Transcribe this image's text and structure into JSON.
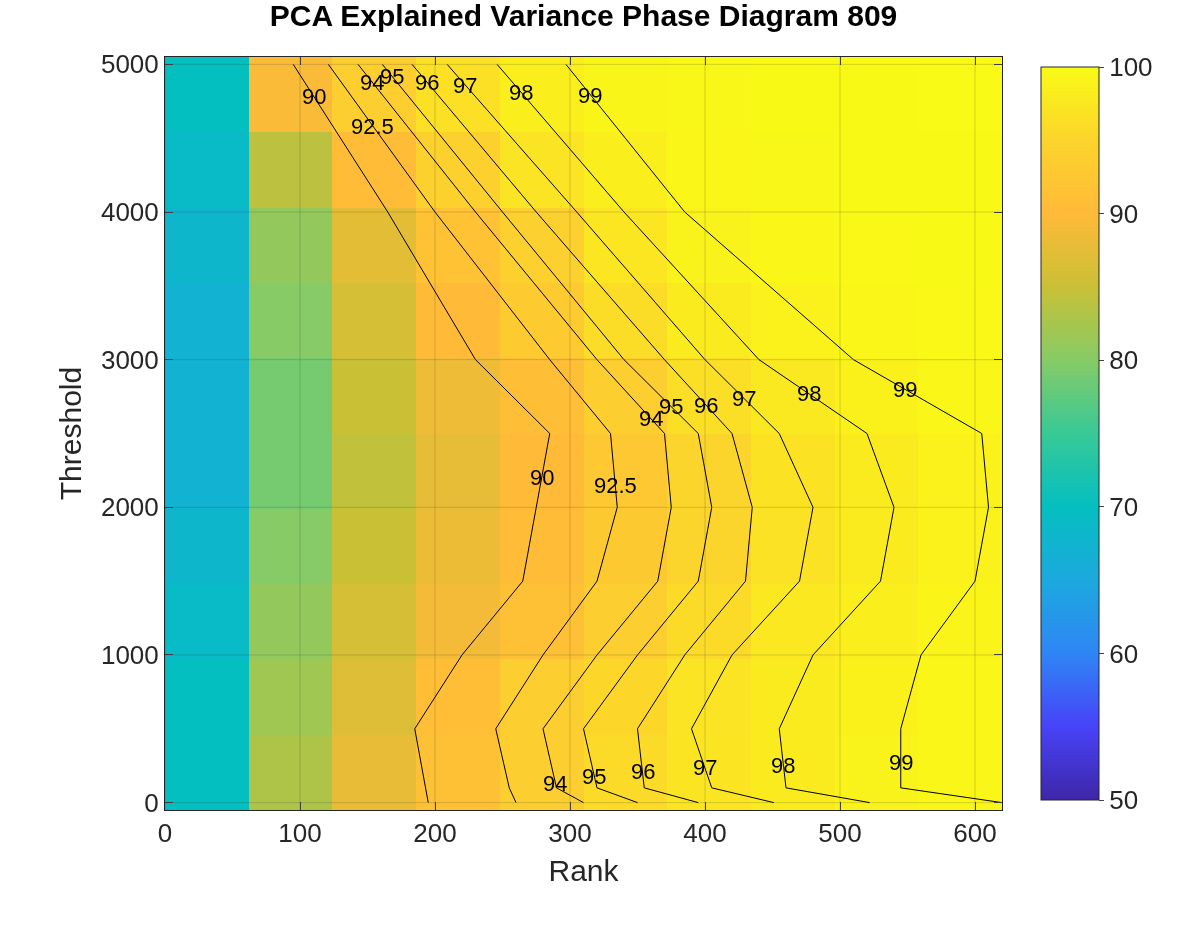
{
  "chart_data": {
    "type": "heatmap",
    "title": "PCA Explained Variance Phase Diagram 809",
    "xlabel": "Rank",
    "ylabel": "Threshold",
    "x": [
      31,
      93,
      155,
      217,
      279,
      341,
      403,
      465,
      527,
      589
    ],
    "cells": [
      [
        70,
        89.5,
        93.8,
        96.6,
        98.3,
        99.2,
        99.5,
        99.7,
        99.8,
        99.9
      ],
      [
        69,
        84,
        90.5,
        94.5,
        97,
        98.5,
        99.3,
        99.5,
        99.7,
        99.8
      ],
      [
        68,
        81,
        87.5,
        91.5,
        94.2,
        97.3,
        98.8,
        99.4,
        99.6,
        99.7
      ],
      [
        67,
        80,
        86,
        90.2,
        93.3,
        96,
        97.9,
        98.9,
        99.4,
        99.6
      ],
      [
        67,
        79,
        85,
        88.5,
        90.9,
        93.9,
        96.4,
        97.7,
        98.7,
        99.3
      ],
      [
        67,
        79,
        84.5,
        87.8,
        90,
        92.7,
        95.1,
        96.9,
        97.9,
        98.9
      ],
      [
        68,
        80,
        85,
        88.3,
        90.3,
        92.8,
        95.1,
        96.8,
        97.9,
        98.9
      ],
      [
        69,
        81,
        86,
        89,
        91.4,
        93.8,
        95.9,
        97.5,
        98.3,
        99.1
      ],
      [
        70,
        82,
        87,
        90.7,
        93.8,
        95.4,
        97,
        98,
        98.7,
        99.3
      ],
      [
        70,
        83,
        88,
        91.3,
        93.9,
        95.8,
        97.2,
        98,
        98.8,
        99.3
      ]
    ],
    "clim": [
      50,
      100
    ],
    "cticks": [
      50,
      60,
      70,
      80,
      90,
      100
    ],
    "xlim": [
      0,
      620
    ],
    "ylim": [
      -50,
      5050
    ],
    "xticks": [
      0,
      100,
      200,
      300,
      400,
      500,
      600
    ],
    "yticks": [
      0,
      1000,
      2000,
      3000,
      4000,
      5000
    ],
    "grid": true,
    "series": [
      {
        "type": "line",
        "color": "#000000",
        "x": [
          195,
          193,
          185,
          220,
          265,
          275,
          285,
          230,
          165,
          95
        ],
        "values": [
          0,
          100,
          500,
          1000,
          1500,
          2000,
          2500,
          3000,
          4000,
          5000
        ]
      },
      {
        "type": "line",
        "color": "#000000",
        "x": [
          260,
          255,
          245,
          280,
          320,
          335,
          330,
          285,
          200,
          121
        ],
        "values": [
          0,
          100,
          500,
          1000,
          1500,
          2000,
          2500,
          3000,
          4000,
          5000
        ]
      },
      {
        "type": "line",
        "color": "#000000",
        "x": [
          310,
          290,
          280,
          320,
          365,
          375,
          370,
          320,
          230,
          143
        ],
        "values": [
          0,
          100,
          500,
          1000,
          1500,
          2000,
          2500,
          3000,
          4000,
          5000
        ]
      },
      {
        "type": "line",
        "color": "#000000",
        "x": [
          350,
          320,
          310,
          350,
          395,
          405,
          395,
          340,
          250,
          161
        ],
        "values": [
          0,
          100,
          500,
          1000,
          1500,
          2000,
          2500,
          3000,
          4000,
          5000
        ]
      },
      {
        "type": "line",
        "color": "#000000",
        "x": [
          395,
          355,
          350,
          385,
          430,
          435,
          420,
          370,
          275,
          183
        ],
        "values": [
          0,
          100,
          500,
          1000,
          1500,
          2000,
          2500,
          3000,
          4000,
          5000
        ]
      },
      {
        "type": "line",
        "color": "#000000",
        "x": [
          451,
          405,
          390,
          420,
          470,
          480,
          455,
          400,
          305,
          209
        ],
        "values": [
          0,
          100,
          500,
          1000,
          1500,
          2000,
          2500,
          3000,
          4000,
          5000
        ]
      },
      {
        "type": "line",
        "color": "#000000",
        "x": [
          522,
          460,
          455,
          480,
          530,
          540,
          520,
          440,
          340,
          246
        ],
        "values": [
          0,
          100,
          500,
          1000,
          1500,
          2000,
          2500,
          3000,
          4000,
          5000
        ]
      },
      {
        "type": "line",
        "color": "#000000",
        "x": [
          620,
          545,
          545,
          560,
          600,
          610,
          605,
          510,
          385,
          297
        ],
        "values": [
          0,
          100,
          500,
          1000,
          1500,
          2000,
          2500,
          3000,
          4000,
          5000
        ]
      }
    ],
    "annotations": [
      {
        "text": "90",
        "x": 110,
        "y": 4780
      },
      {
        "text": "90",
        "x": 279,
        "y": 2200
      },
      {
        "text": "92.5",
        "x": 154,
        "y": 4580
      },
      {
        "text": "92.5",
        "x": 334,
        "y": 2150
      },
      {
        "text": "94",
        "x": 153,
        "y": 4880
      },
      {
        "text": "94",
        "x": 360,
        "y": 2600
      },
      {
        "text": "94",
        "x": 289,
        "y": 130
      },
      {
        "text": "95",
        "x": 168,
        "y": 4920
      },
      {
        "text": "95",
        "x": 375,
        "y": 2680
      },
      {
        "text": "95",
        "x": 318,
        "y": 180
      },
      {
        "text": "96",
        "x": 194,
        "y": 4880
      },
      {
        "text": "96",
        "x": 401,
        "y": 2690
      },
      {
        "text": "96",
        "x": 354,
        "y": 210
      },
      {
        "text": "97",
        "x": 222,
        "y": 4860
      },
      {
        "text": "97",
        "x": 429,
        "y": 2740
      },
      {
        "text": "97",
        "x": 400,
        "y": 240
      },
      {
        "text": "98",
        "x": 264,
        "y": 4810
      },
      {
        "text": "98",
        "x": 477,
        "y": 2770
      },
      {
        "text": "98",
        "x": 458,
        "y": 250
      },
      {
        "text": "99",
        "x": 315,
        "y": 4790
      },
      {
        "text": "99",
        "x": 548,
        "y": 2800
      },
      {
        "text": "99",
        "x": 545,
        "y": 270
      }
    ]
  }
}
